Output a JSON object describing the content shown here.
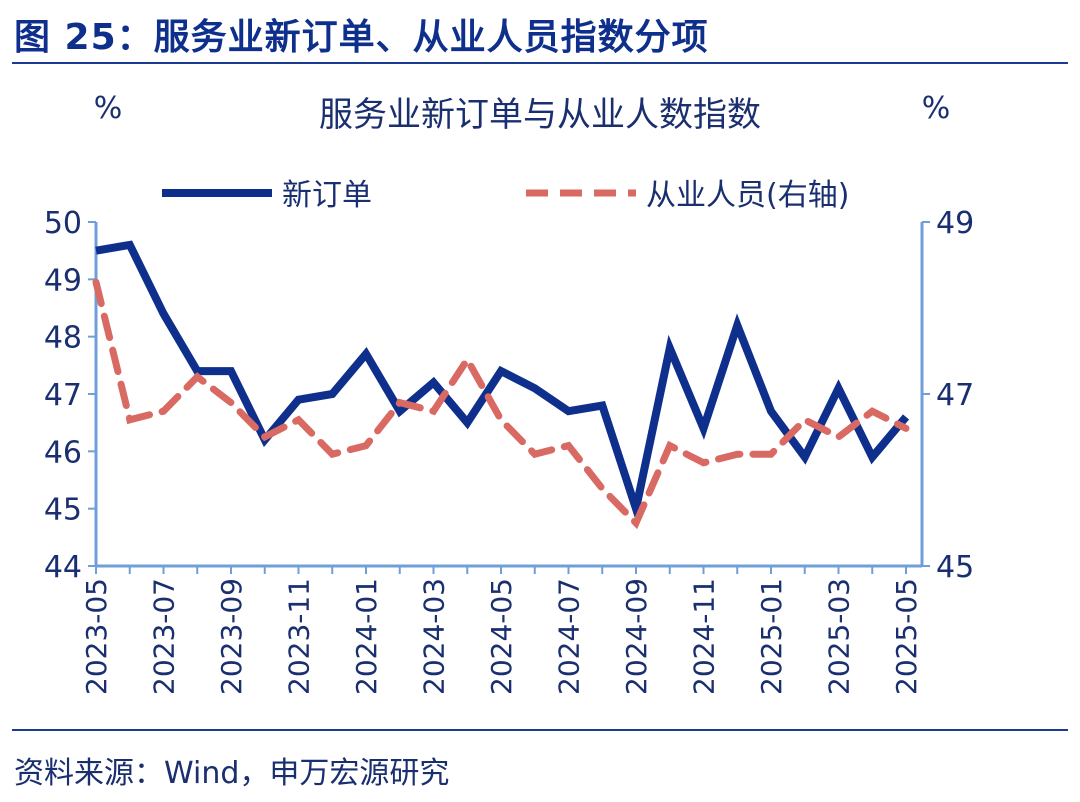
{
  "figure_title": "图 25：服务业新订单、从业人员指数分项",
  "source": "资料来源：Wind，申万宏源研究",
  "chart_data": {
    "type": "line",
    "title": "服务业新订单与从业人数指数",
    "ylabel_left": "%",
    "ylabel_right": "%",
    "ylim_left": [
      44,
      50
    ],
    "ylim_right": [
      45,
      49
    ],
    "yticks_left": [
      44,
      45,
      46,
      47,
      48,
      49,
      50
    ],
    "yticks_right": [
      45,
      47,
      49
    ],
    "grid": false,
    "legend_placement": "top",
    "x": [
      "2023-05",
      "2023-06",
      "2023-07",
      "2023-08",
      "2023-09",
      "2023-10",
      "2023-11",
      "2023-12",
      "2024-01",
      "2024-02",
      "2024-03",
      "2024-04",
      "2024-05",
      "2024-06",
      "2024-07",
      "2024-08",
      "2024-09",
      "2024-10",
      "2024-11",
      "2024-12",
      "2025-01",
      "2025-02",
      "2025-03",
      "2025-04",
      "2025-05"
    ],
    "xtick_labels": [
      "2023-05",
      "2023-07",
      "2023-09",
      "2023-11",
      "2024-01",
      "2024-03",
      "2024-05",
      "2024-07",
      "2024-09",
      "2024-11",
      "2025-01",
      "2025-03",
      "2025-05"
    ],
    "series": [
      {
        "name": "新订单",
        "axis": "left",
        "style": "solid",
        "color": "#0f2f8c",
        "values": [
          49.5,
          49.6,
          48.4,
          47.4,
          47.4,
          46.2,
          46.9,
          47.0,
          47.7,
          46.7,
          47.2,
          46.5,
          47.4,
          47.1,
          46.7,
          46.8,
          45.0,
          47.8,
          46.4,
          48.2,
          46.7,
          45.9,
          47.1,
          45.9,
          46.6
        ]
      },
      {
        "name": "从业人员(右轴)",
        "axis": "right",
        "style": "dashed",
        "color": "#d96a63",
        "values": [
          48.3,
          46.7,
          46.8,
          47.2,
          46.9,
          46.5,
          46.7,
          46.3,
          46.4,
          46.9,
          46.8,
          47.4,
          46.7,
          46.3,
          46.4,
          45.9,
          45.5,
          46.4,
          46.2,
          46.3,
          46.3,
          46.7,
          46.5,
          46.8,
          46.6
        ]
      }
    ],
    "axis_color": "#6f9fd8"
  }
}
